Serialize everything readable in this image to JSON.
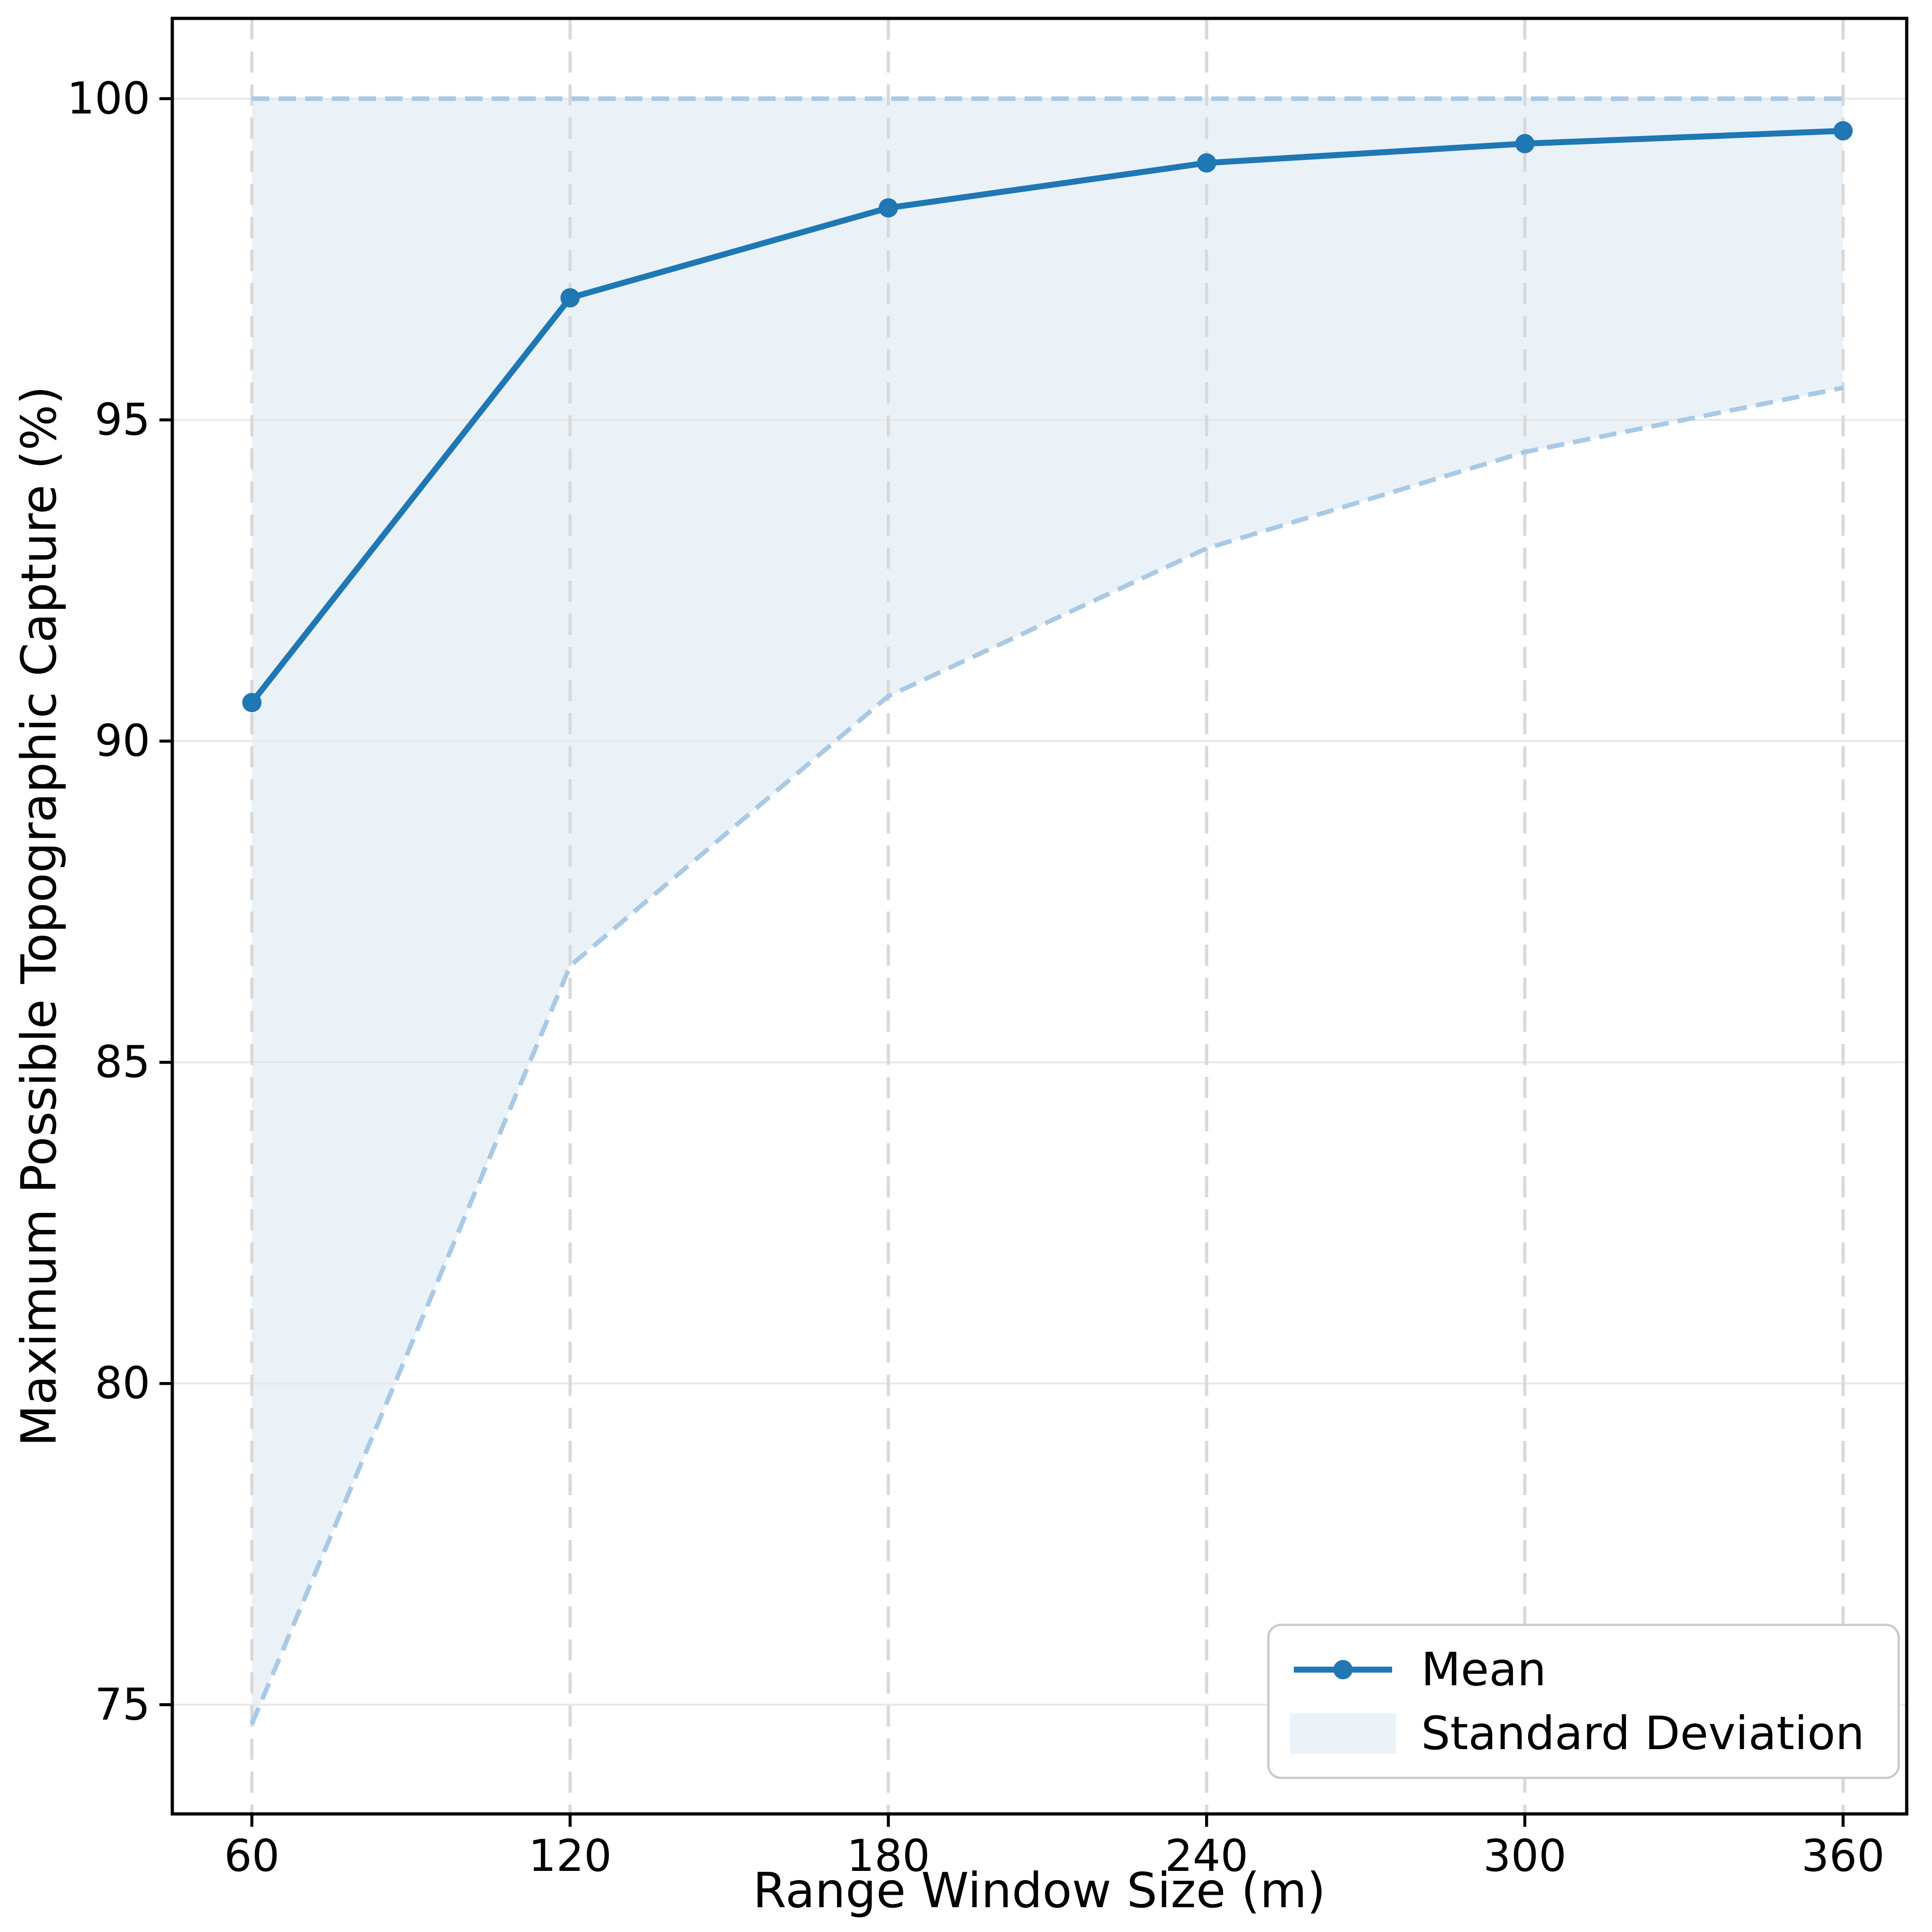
{
  "chart_data": {
    "type": "line",
    "xlabel": "Range Window Size (m)",
    "ylabel": "Maximum Possible Topographic Capture (%)",
    "x": [
      60,
      120,
      180,
      240,
      300,
      360
    ],
    "series": [
      {
        "name": "Mean",
        "values": [
          90.6,
          96.9,
          98.3,
          99.0,
          99.3,
          99.5
        ]
      }
    ],
    "band": {
      "name": "Standard Deviation",
      "lower": [
        74.7,
        86.5,
        90.7,
        93.0,
        94.5,
        95.5
      ],
      "upper": [
        100,
        100,
        100,
        100,
        100,
        100
      ]
    },
    "x_ticks": [
      "60",
      "120",
      "180",
      "240",
      "300",
      "360"
    ],
    "y_ticks": [
      "75",
      "80",
      "85",
      "90",
      "95",
      "100"
    ],
    "x_tick_values": [
      60,
      120,
      180,
      240,
      300,
      360
    ],
    "y_tick_values": [
      75,
      80,
      85,
      90,
      95,
      100
    ],
    "xlim": [
      45,
      372
    ],
    "ylim": [
      73.3,
      101.25
    ],
    "grid": {
      "vertical": "dashed",
      "horizontal": "solid"
    },
    "legend": {
      "position": "lower right",
      "entries": [
        {
          "label": "Mean",
          "type": "line"
        },
        {
          "label": "Standard Deviation",
          "type": "patch"
        }
      ]
    }
  },
  "colors": {
    "line": "#1f77b4",
    "band_fill": "#eaf2f8",
    "band_edge": "#a9c9e4",
    "grid_vertical": "#d9d9d9",
    "grid_horizontal": "#e7e7e7",
    "axis": "#000000"
  }
}
